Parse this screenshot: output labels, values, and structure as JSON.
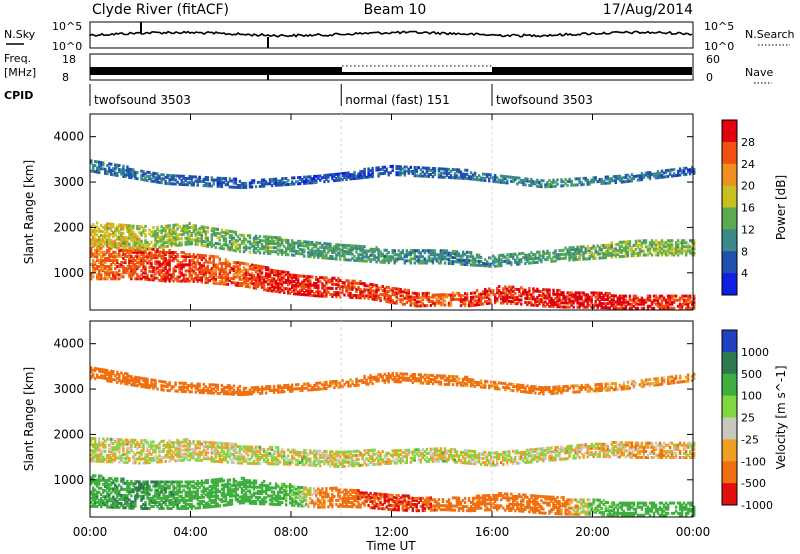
{
  "header": {
    "radar": "Clyde River (fitACF)",
    "beam": "Beam 10",
    "date": "17/Aug/2014"
  },
  "status_panels": {
    "nsky_label": "N.Sky",
    "nsky_ticks": [
      "10^5",
      "10^0"
    ],
    "nsearch_label": "N.Search",
    "nsearch_ticks": [
      "10^5",
      "10^0"
    ],
    "freq_label": "Freq.",
    "freq_unit": "[MHz]",
    "freq_ticks": [
      "18",
      "8"
    ],
    "nave_label": "Nave",
    "nave_ticks": [
      "60",
      "0"
    ],
    "cpid_label": "CPID",
    "cpid_segments": [
      {
        "label": "twofsound 3503",
        "start_hour": 0,
        "end_hour": 10
      },
      {
        "label": "normal (fast) 151",
        "start_hour": 10,
        "end_hour": 16
      },
      {
        "label": "twofsound 3503",
        "start_hour": 16,
        "end_hour": 24
      }
    ]
  },
  "chart_data": [
    {
      "type": "heatmap",
      "title": "",
      "xlabel": "",
      "ylabel": "Slant Range [km]",
      "xlim": [
        0,
        24
      ],
      "ylim": [
        180,
        4500
      ],
      "x_ticks": [
        0,
        4,
        8,
        12,
        16,
        20,
        24
      ],
      "y_ticks": [
        1000,
        2000,
        3000,
        4000
      ],
      "colorbar": {
        "label": "Power [dB]",
        "ticks": [
          4,
          8,
          12,
          16,
          20,
          24,
          28
        ],
        "range": [
          0,
          30
        ],
        "colors": [
          "#1020e0",
          "#2050b0",
          "#3a8a8a",
          "#5aaa50",
          "#c8c020",
          "#f09020",
          "#f05010",
          "#e00010"
        ]
      },
      "bands": [
        {
          "name": "",
          "x": [
            0,
            1,
            2,
            3,
            4,
            5,
            6,
            7,
            8,
            9,
            10,
            11,
            12,
            13,
            14,
            15,
            16,
            17,
            18,
            19,
            20,
            21,
            22,
            23,
            24
          ],
          "center": [
            1350,
            1300,
            1250,
            1200,
            1150,
            1100,
            1000,
            900,
            800,
            750,
            700,
            650,
            550,
            450,
            450,
            450,
            550,
            550,
            500,
            450,
            450,
            400,
            400,
            400,
            400
          ],
          "width": [
            900,
            800,
            700,
            700,
            600,
            600,
            500,
            500,
            450,
            450,
            400,
            350,
            350,
            300,
            250,
            300,
            350,
            400,
            400,
            350,
            350,
            300,
            300,
            300,
            300
          ],
          "power": [
            22,
            24,
            25,
            26,
            25,
            24,
            24,
            26,
            27,
            27,
            26,
            26,
            25,
            25,
            24,
            25,
            26,
            27,
            27,
            28,
            28,
            28,
            27,
            26,
            25
          ]
        },
        {
          "name": "",
          "x": [
            0,
            2,
            4,
            6,
            8,
            10,
            12,
            14,
            16,
            18,
            20,
            22,
            24
          ],
          "center": [
            1900,
            1800,
            1900,
            1700,
            1600,
            1500,
            1400,
            1400,
            1300,
            1400,
            1500,
            1600,
            1600
          ],
          "width": [
            500,
            500,
            450,
            400,
            350,
            350,
            300,
            300,
            250,
            250,
            300,
            350,
            350
          ],
          "power": [
            18,
            16,
            14,
            13,
            12,
            11,
            10,
            9,
            10,
            11,
            13,
            14,
            14
          ]
        },
        {
          "name": "",
          "x": [
            0,
            3,
            6,
            9,
            12,
            15,
            18,
            21,
            24
          ],
          "center": [
            3400,
            3100,
            3000,
            3100,
            3300,
            3200,
            3000,
            3100,
            3300
          ],
          "width": [
            250,
            200,
            180,
            150,
            200,
            180,
            150,
            150,
            150
          ],
          "power": [
            8,
            7,
            6,
            5,
            6,
            7,
            10,
            8,
            6
          ]
        }
      ]
    },
    {
      "type": "heatmap",
      "title": "",
      "xlabel": "Time UT",
      "ylabel": "Slant Range [km]",
      "xlim": [
        0,
        24
      ],
      "ylim": [
        180,
        4500
      ],
      "x_tick_labels": [
        "00:00",
        "04:00",
        "08:00",
        "12:00",
        "16:00",
        "20:00",
        "00:00"
      ],
      "y_ticks": [
        1000,
        2000,
        3000,
        4000
      ],
      "colorbar": {
        "label": "Velocity [m s^-1]",
        "ticks": [
          1000,
          500,
          100,
          25,
          -25,
          -100,
          -500,
          -1000
        ],
        "colors": [
          "#2040c0",
          "#2c7a4e",
          "#3fae3f",
          "#80d840",
          "#c8c8c0",
          "#f0a020",
          "#f07010",
          "#e01010"
        ]
      },
      "bands": [
        {
          "name": "",
          "x": [
            0,
            1,
            2,
            3,
            4,
            5,
            6,
            7,
            8,
            9,
            10,
            11,
            12,
            13,
            14,
            15,
            16,
            17,
            18,
            19,
            20,
            21,
            22,
            23,
            24
          ],
          "center": [
            800,
            750,
            700,
            700,
            700,
            750,
            800,
            750,
            700,
            650,
            650,
            600,
            550,
            500,
            500,
            500,
            550,
            550,
            500,
            450,
            450,
            400,
            400,
            400,
            400
          ],
          "width": [
            700,
            650,
            600,
            600,
            600,
            600,
            550,
            500,
            450,
            450,
            400,
            350,
            350,
            300,
            250,
            300,
            350,
            400,
            400,
            350,
            350,
            300,
            300,
            300,
            300
          ],
          "velocity": [
            400,
            450,
            500,
            450,
            400,
            300,
            250,
            200,
            150,
            -100,
            -300,
            -500,
            -500,
            -500,
            -400,
            -300,
            -200,
            -300,
            -300,
            -100,
            100,
            200,
            300,
            250,
            200
          ]
        },
        {
          "name": "",
          "x": [
            0,
            2,
            4,
            6,
            8,
            10,
            12,
            14,
            16,
            18,
            20,
            22,
            24
          ],
          "center": [
            1700,
            1650,
            1700,
            1600,
            1550,
            1500,
            1550,
            1600,
            1500,
            1600,
            1700,
            1700,
            1700
          ],
          "width": [
            500,
            500,
            450,
            400,
            350,
            350,
            300,
            300,
            300,
            300,
            300,
            350,
            350
          ],
          "velocity": [
            0,
            5,
            -5,
            0,
            10,
            -10,
            0,
            5,
            -5,
            0,
            -20,
            -60,
            -40
          ]
        },
        {
          "name": "",
          "x": [
            0,
            3,
            6,
            9,
            12,
            15,
            18,
            21,
            24
          ],
          "center": [
            3400,
            3100,
            3000,
            3100,
            3300,
            3200,
            3000,
            3100,
            3300
          ],
          "width": [
            250,
            200,
            180,
            150,
            200,
            180,
            150,
            150,
            150
          ],
          "velocity": [
            -200,
            -300,
            -250,
            -150,
            -200,
            -150,
            -200,
            -100,
            -100
          ]
        }
      ]
    }
  ]
}
